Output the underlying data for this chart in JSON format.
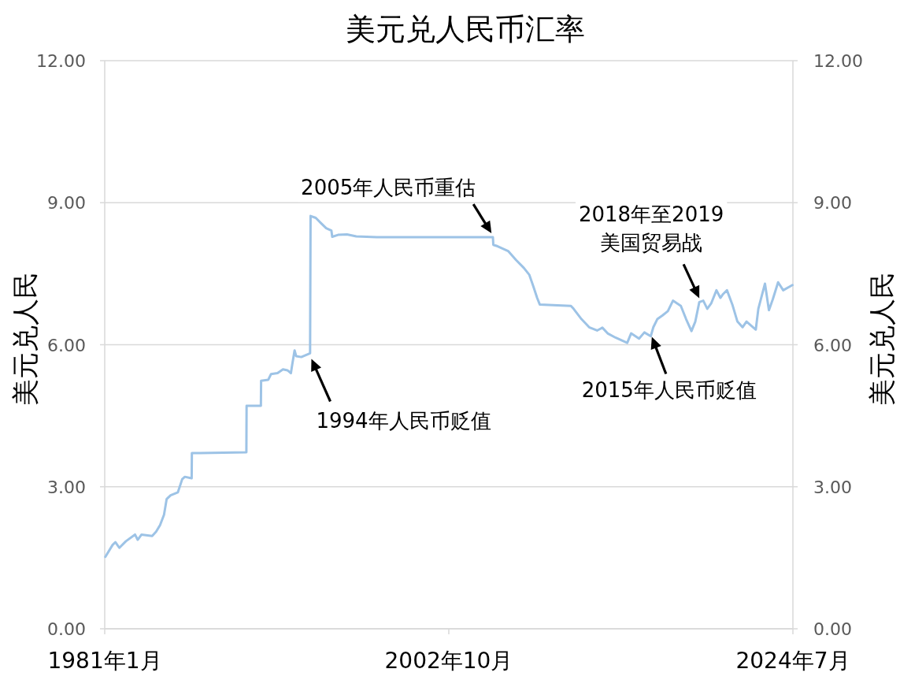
{
  "chart_data": {
    "type": "line",
    "title": "美元兑人民币汇率",
    "ylabel": "美元兑人民",
    "y2label": "美元兑人民",
    "x": [
      "1981-01-15",
      "1981-07-01",
      "1981-09-05",
      "1981-12-05",
      "1982-05-05",
      "1982-12-01",
      "1983-02-01",
      "1983-05-01",
      "1984-01-01",
      "1984-04-01",
      "1984-07-01",
      "1984-10-01",
      "1984-12-01",
      "1985-03-01",
      "1985-08-15",
      "1985-11-25",
      "1986-01-25",
      "1986-07-01",
      "1986-07-06",
      "1989-12-15",
      "1989-12-20",
      "1990-11-15",
      "1990-11-20",
      "1991-05-05",
      "1991-07-08",
      "1991-12-05",
      "1992-04-08",
      "1992-07-20",
      "1992-10-08",
      "1992-11-06",
      "1993-01-01",
      "1993-02-06",
      "1993-06-05",
      "1993-12-25",
      "1994-01-05",
      "1994-05-05",
      "1994-09-01",
      "1995-01-01",
      "1995-05-01",
      "1995-05-20",
      "1995-10-01",
      "1996-04-25",
      "1996-11-25",
      "1998-03-15",
      "2005-07-15",
      "2005-07-25",
      "2005-11-01",
      "2006-07-01",
      "2007-01-01",
      "2007-07-01",
      "2007-11-01",
      "2008-02-01",
      "2008-05-01",
      "2008-07-01",
      "2010-06-20",
      "2010-08-20",
      "2011-02-20",
      "2011-08-15",
      "2012-02-15",
      "2012-06-15",
      "2012-10-15",
      "2013-04-15",
      "2014-01-10",
      "2014-04-10",
      "2014-10-10",
      "2015-02-10",
      "2015-07-08",
      "2015-09-05",
      "2015-12-05",
      "2016-04-05",
      "2016-08-05",
      "2016-12-01",
      "2017-06-01",
      "2017-10-01",
      "2018-02-01",
      "2018-05-01",
      "2018-08-01",
      "2018-11-01",
      "2019-02-01",
      "2019-05-01",
      "2019-09-01",
      "2019-12-01",
      "2020-02-01",
      "2020-05-01",
      "2020-09-01",
      "2020-12-28",
      "2021-04-25",
      "2021-07-25",
      "2022-02-25",
      "2022-04-25",
      "2022-09-25",
      "2022-12-25",
      "2023-03-25",
      "2023-07-25",
      "2023-11-20",
      "2024-06-20"
    ],
    "series": [
      {
        "color": "#9dc3e6",
        "values": [
          1.52,
          1.77,
          1.83,
          1.71,
          1.85,
          1.99,
          1.88,
          1.99,
          1.96,
          2.05,
          2.19,
          2.41,
          2.74,
          2.82,
          2.88,
          3.16,
          3.21,
          3.18,
          3.71,
          3.73,
          4.71,
          4.71,
          5.24,
          5.26,
          5.38,
          5.4,
          5.48,
          5.46,
          5.4,
          5.57,
          5.88,
          5.76,
          5.74,
          5.82,
          8.72,
          8.68,
          8.57,
          8.46,
          8.41,
          8.28,
          8.32,
          8.33,
          8.29,
          8.27,
          8.27,
          8.11,
          8.08,
          7.98,
          7.79,
          7.62,
          7.48,
          7.24,
          6.99,
          6.85,
          6.82,
          6.76,
          6.54,
          6.37,
          6.3,
          6.36,
          6.24,
          6.15,
          6.04,
          6.24,
          6.13,
          6.26,
          6.18,
          6.37,
          6.54,
          6.62,
          6.71,
          6.93,
          6.82,
          6.54,
          6.29,
          6.49,
          6.9,
          6.93,
          6.76,
          6.87,
          7.15,
          6.99,
          7.07,
          7.15,
          6.85,
          6.49,
          6.37,
          6.49,
          6.32,
          6.76,
          7.29,
          6.73,
          6.96,
          7.32,
          7.15,
          7.26
        ]
      }
    ],
    "xlim": [
      "1981-01",
      "2024-07"
    ],
    "xticks": [
      {
        "value": "1981-01",
        "label": "1981年1月"
      },
      {
        "value": "2002-10",
        "label": "2002年10月"
      },
      {
        "value": "2024-07",
        "label": "2024年7月"
      }
    ],
    "ylim": [
      0,
      12
    ],
    "yticks": [
      {
        "value": 0,
        "label": "0.00"
      },
      {
        "value": 3,
        "label": "3.00"
      },
      {
        "value": 6,
        "label": "6.00"
      },
      {
        "value": 9,
        "label": "9.00"
      },
      {
        "value": 12,
        "label": "12.00"
      }
    ],
    "y2lim": [
      0,
      12
    ],
    "y2ticks": [
      {
        "value": 0,
        "label": "0.00"
      },
      {
        "value": 3,
        "label": "3.00"
      },
      {
        "value": 6,
        "label": "6.00"
      },
      {
        "value": 9,
        "label": "9.00"
      },
      {
        "value": 12,
        "label": "12.00"
      }
    ],
    "grid": "y",
    "line_style": "solid",
    "annotations": [
      {
        "text": "1994年人民币贬值",
        "x": "1993-12",
        "y": 5.8
      },
      {
        "text": "2005年人民币重估",
        "x": "2005-07",
        "y": 8.27
      },
      {
        "text": "2015年人民币贬值",
        "x": "2015-08",
        "y": 6.25
      },
      {
        "text": "2018年至2019\n美国贸易战",
        "x": "2018-08",
        "y": 6.9
      }
    ]
  }
}
